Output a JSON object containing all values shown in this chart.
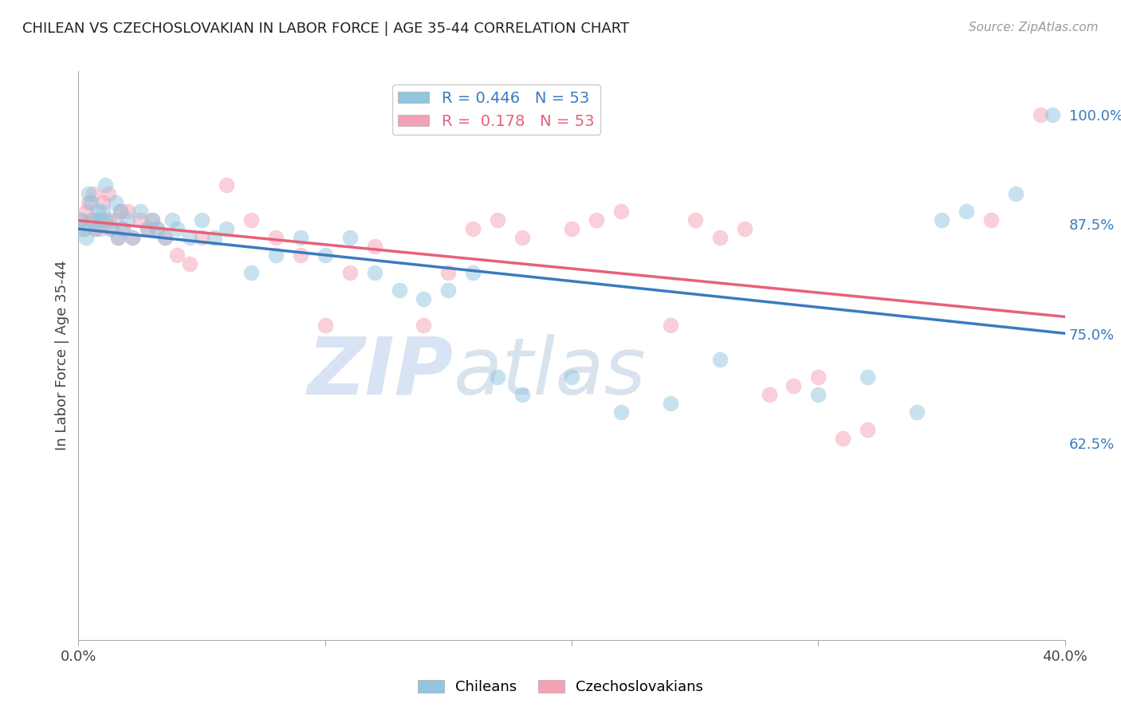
{
  "title": "CHILEAN VS CZECHOSLOVAKIAN IN LABOR FORCE | AGE 35-44 CORRELATION CHART",
  "source": "Source: ZipAtlas.com",
  "ylabel": "In Labor Force | Age 35-44",
  "xlim": [
    0.0,
    0.4
  ],
  "ylim": [
    0.4,
    1.05
  ],
  "yticks": [
    0.625,
    0.75,
    0.875,
    1.0
  ],
  "ytick_labels": [
    "62.5%",
    "75.0%",
    "87.5%",
    "100.0%"
  ],
  "xticks": [
    0.0,
    0.1,
    0.2,
    0.3,
    0.4
  ],
  "xtick_labels": [
    "0.0%",
    "",
    "",
    "",
    "40.0%"
  ],
  "blue_color": "#92c5de",
  "pink_color": "#f4a0b5",
  "blue_line_color": "#3a7bbf",
  "pink_line_color": "#e8607a",
  "legend_blue_label": "R = 0.446   N = 53",
  "legend_pink_label": "R =  0.178   N = 53",
  "blue_scatter_x": [
    0.001,
    0.002,
    0.003,
    0.004,
    0.005,
    0.006,
    0.007,
    0.008,
    0.009,
    0.01,
    0.011,
    0.012,
    0.013,
    0.015,
    0.016,
    0.017,
    0.018,
    0.02,
    0.022,
    0.025,
    0.028,
    0.03,
    0.032,
    0.035,
    0.038,
    0.04,
    0.045,
    0.05,
    0.055,
    0.06,
    0.07,
    0.08,
    0.09,
    0.1,
    0.11,
    0.12,
    0.13,
    0.14,
    0.15,
    0.16,
    0.17,
    0.18,
    0.2,
    0.22,
    0.24,
    0.26,
    0.3,
    0.32,
    0.34,
    0.35,
    0.36,
    0.38,
    0.395
  ],
  "blue_scatter_y": [
    0.88,
    0.87,
    0.86,
    0.91,
    0.9,
    0.88,
    0.87,
    0.89,
    0.88,
    0.89,
    0.92,
    0.88,
    0.87,
    0.9,
    0.86,
    0.89,
    0.87,
    0.88,
    0.86,
    0.89,
    0.87,
    0.88,
    0.87,
    0.86,
    0.88,
    0.87,
    0.86,
    0.88,
    0.86,
    0.87,
    0.82,
    0.84,
    0.86,
    0.84,
    0.86,
    0.82,
    0.8,
    0.79,
    0.8,
    0.82,
    0.7,
    0.68,
    0.7,
    0.66,
    0.67,
    0.72,
    0.68,
    0.7,
    0.66,
    0.88,
    0.89,
    0.91,
    1.0
  ],
  "pink_scatter_x": [
    0.001,
    0.002,
    0.003,
    0.004,
    0.005,
    0.006,
    0.007,
    0.008,
    0.009,
    0.01,
    0.011,
    0.012,
    0.013,
    0.015,
    0.016,
    0.017,
    0.018,
    0.02,
    0.022,
    0.025,
    0.028,
    0.03,
    0.032,
    0.035,
    0.04,
    0.045,
    0.05,
    0.06,
    0.07,
    0.08,
    0.09,
    0.1,
    0.11,
    0.12,
    0.14,
    0.15,
    0.16,
    0.17,
    0.18,
    0.2,
    0.21,
    0.22,
    0.24,
    0.25,
    0.26,
    0.27,
    0.28,
    0.29,
    0.3,
    0.31,
    0.32,
    0.37,
    0.39
  ],
  "pink_scatter_y": [
    0.88,
    0.87,
    0.89,
    0.9,
    0.88,
    0.91,
    0.87,
    0.88,
    0.87,
    0.9,
    0.88,
    0.91,
    0.87,
    0.88,
    0.86,
    0.89,
    0.87,
    0.89,
    0.86,
    0.88,
    0.87,
    0.88,
    0.87,
    0.86,
    0.84,
    0.83,
    0.86,
    0.92,
    0.88,
    0.86,
    0.84,
    0.76,
    0.82,
    0.85,
    0.76,
    0.82,
    0.87,
    0.88,
    0.86,
    0.87,
    0.88,
    0.89,
    0.76,
    0.88,
    0.86,
    0.87,
    0.68,
    0.69,
    0.7,
    0.63,
    0.64,
    0.88,
    1.0
  ],
  "background_color": "#ffffff",
  "grid_color": "#d0d0d0"
}
